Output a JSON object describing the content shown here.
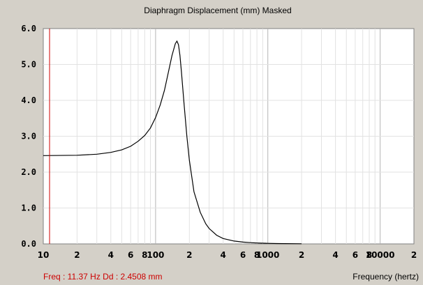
{
  "chart_data": {
    "type": "line",
    "title": "Diaphragm Displacement (mm)   Masked",
    "xlabel": "Frequency (hertz)",
    "ylabel": "",
    "x_scale": "log",
    "xlim": [
      10,
      20000
    ],
    "ylim": [
      0,
      6
    ],
    "y_ticks": [
      "0.0",
      "1.0",
      "2.0",
      "3.0",
      "4.0",
      "5.0",
      "6.0"
    ],
    "x_ticks": [
      {
        "value": 10,
        "label": "10"
      },
      {
        "value": 20,
        "label": "2"
      },
      {
        "value": 40,
        "label": "4"
      },
      {
        "value": 60,
        "label": "6"
      },
      {
        "value": 80,
        "label": "8"
      },
      {
        "value": 100,
        "label": "100"
      },
      {
        "value": 200,
        "label": "2"
      },
      {
        "value": 400,
        "label": "4"
      },
      {
        "value": 600,
        "label": "6"
      },
      {
        "value": 800,
        "label": "8"
      },
      {
        "value": 1000,
        "label": "1000"
      },
      {
        "value": 2000,
        "label": "2"
      },
      {
        "value": 4000,
        "label": "4"
      },
      {
        "value": 6000,
        "label": "6"
      },
      {
        "value": 8000,
        "label": "8"
      },
      {
        "value": 10000,
        "label": "10000"
      },
      {
        "value": 20000,
        "label": "2"
      }
    ],
    "grid": true,
    "series": [
      {
        "color": "#000000",
        "x": [
          10,
          20,
          30,
          40,
          50,
          60,
          70,
          80,
          90,
          100,
          110,
          120,
          130,
          140,
          150,
          155,
          160,
          165,
          170,
          180,
          190,
          200,
          220,
          250,
          280,
          300,
          350,
          400,
          500,
          600,
          700,
          800,
          1000,
          1200,
          2000
        ],
        "y": [
          2.46,
          2.47,
          2.5,
          2.55,
          2.62,
          2.72,
          2.86,
          3.02,
          3.23,
          3.52,
          3.87,
          4.28,
          4.78,
          5.25,
          5.58,
          5.65,
          5.55,
          5.25,
          4.8,
          3.85,
          3.0,
          2.33,
          1.45,
          0.88,
          0.56,
          0.43,
          0.24,
          0.15,
          0.08,
          0.05,
          0.035,
          0.025,
          0.015,
          0.01,
          0.004
        ]
      }
    ],
    "marker": {
      "x": 11.37,
      "color": "#cc0000"
    },
    "readout": {
      "text": "Freq : 11.37 Hz     Dd : 2.4508 mm"
    }
  }
}
